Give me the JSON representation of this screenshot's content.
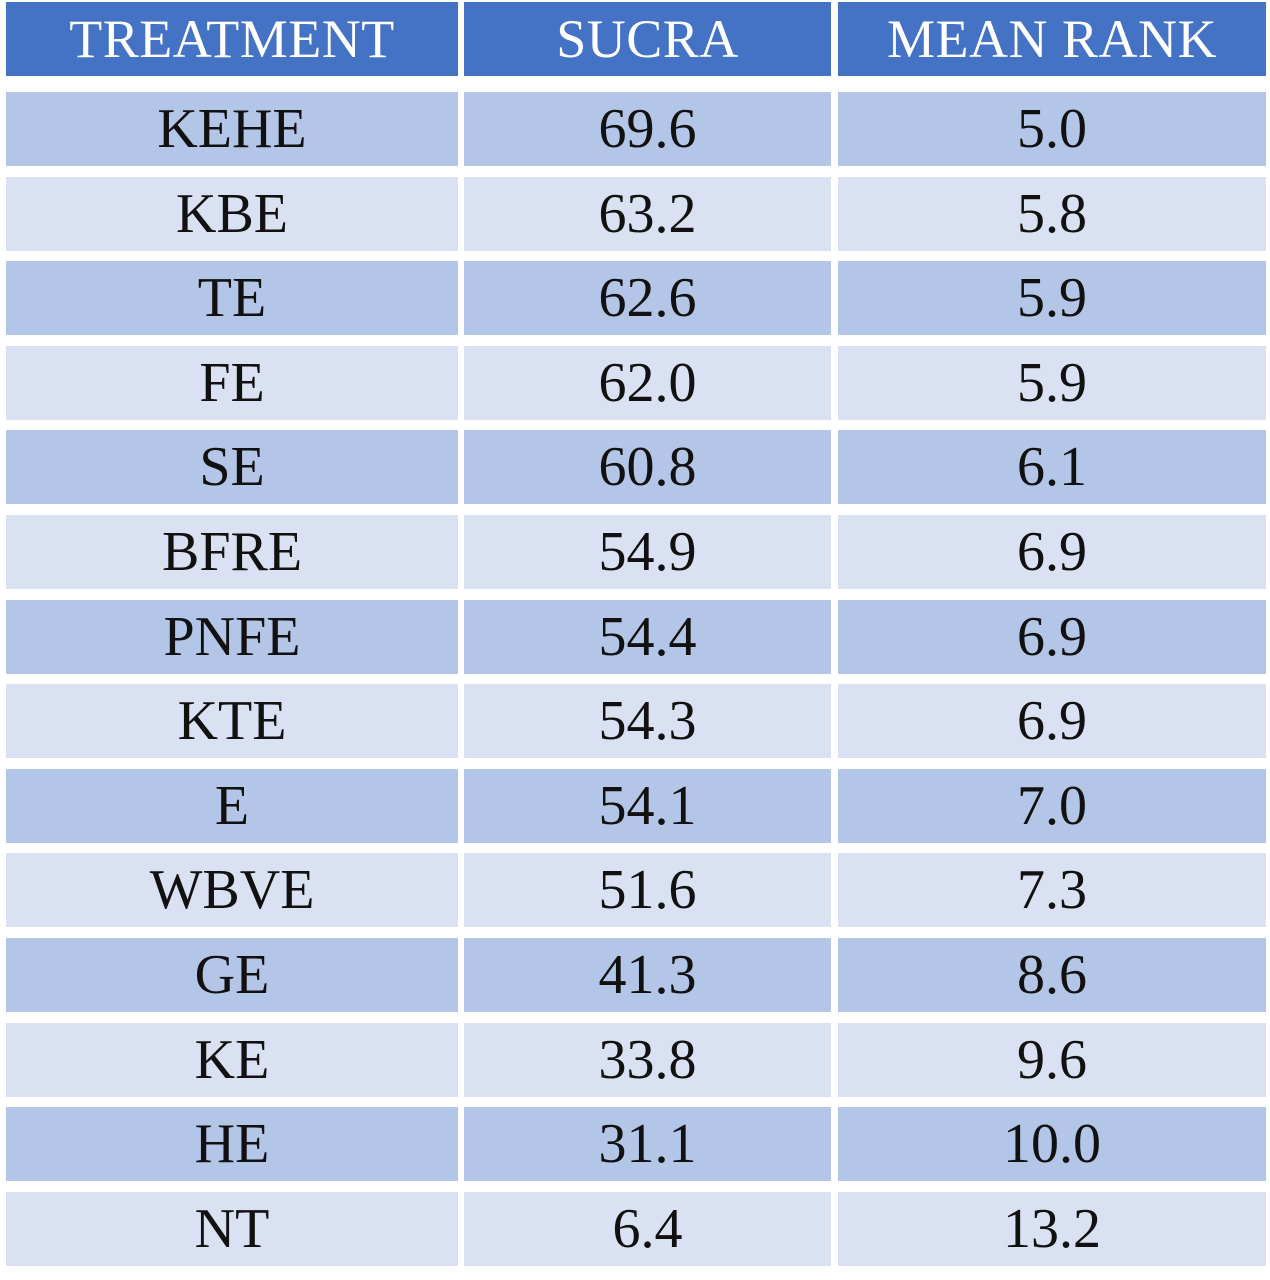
{
  "colors": {
    "header": "#4472C4",
    "row_dark": "#B4C6E7",
    "row_light": "#D9E1F2",
    "gridline": "#ffffff"
  },
  "table": {
    "headers": [
      "TREATMENT",
      "SUCRA",
      "MEAN RANK"
    ],
    "rows": [
      [
        "KEHE",
        "69.6",
        "5.0"
      ],
      [
        "KBE",
        "63.2",
        "5.8"
      ],
      [
        "TE",
        "62.6",
        "5.9"
      ],
      [
        "FE",
        "62.0",
        "5.9"
      ],
      [
        "SE",
        "60.8",
        "6.1"
      ],
      [
        "BFRE",
        "54.9",
        "6.9"
      ],
      [
        "PNFE",
        "54.4",
        "6.9"
      ],
      [
        "KTE",
        "54.3",
        "6.9"
      ],
      [
        "E",
        "54.1",
        "7.0"
      ],
      [
        "WBVE",
        "51.6",
        "7.3"
      ],
      [
        "GE",
        "41.3",
        "8.6"
      ],
      [
        "KE",
        "33.8",
        "9.6"
      ],
      [
        "HE",
        "31.1",
        "10.0"
      ],
      [
        "NT",
        "6.4",
        "13.2"
      ]
    ]
  }
}
